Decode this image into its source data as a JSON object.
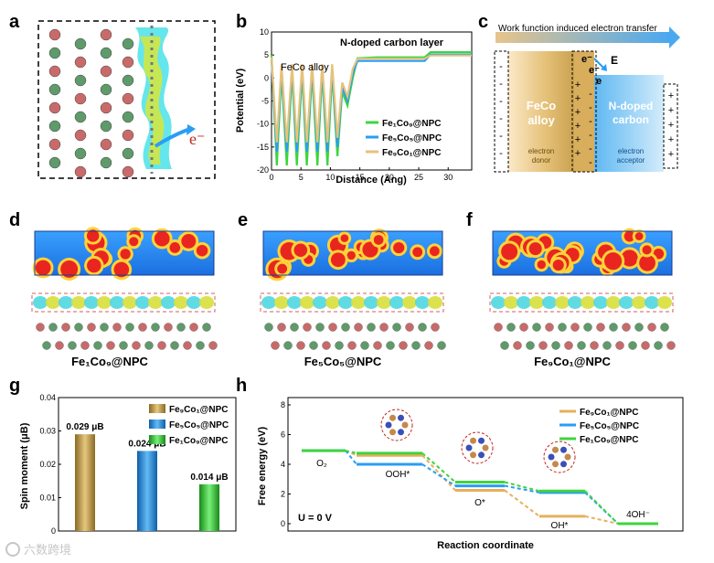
{
  "panels": {
    "a": "a",
    "b": "b",
    "c": "c",
    "d": "d",
    "e": "e",
    "f": "f",
    "g": "g",
    "h": "h"
  },
  "panel_a": {
    "electron_label": "e⁻"
  },
  "panel_c": {
    "arrow_text": "Work function induced electron transfer",
    "left_title_1": "FeCo",
    "left_title_2": "alloy",
    "left_sub_1": "electron",
    "left_sub_2": "donor",
    "right_title_1": "N-doped",
    "right_title_2": "carbon",
    "right_sub_1": "electron",
    "right_sub_2": "acceptor",
    "field_label": "E",
    "electron_1": "e⁻",
    "electron_2": "e⁻",
    "electron_3": "e",
    "minus": "-",
    "plus": "+"
  },
  "panel_titles": {
    "d": "Fe₁Co₉@NPC",
    "e": "Fe₅Co₅@NPC",
    "f": "Fe₉Co₁@NPC"
  },
  "chart_data": [
    {
      "id": "b",
      "type": "line",
      "xlabel": "Distance (Ang)",
      "ylabel": "Potential (eV)",
      "xlim": [
        0,
        34
      ],
      "ylim": [
        -20,
        10
      ],
      "xticks": [
        0,
        5,
        10,
        15,
        20,
        25,
        30
      ],
      "yticks": [
        -20,
        -15,
        -10,
        -5,
        0,
        5,
        10
      ],
      "annotations": [
        "FeCo alloy",
        "N-doped carbon layer"
      ],
      "series": [
        {
          "name": "Fe₁Co₉@NPC",
          "color": "#3fd43f",
          "x": [
            0,
            0.9,
            1.7,
            2.6,
            3.5,
            4.3,
            5.2,
            6.0,
            6.9,
            7.8,
            8.6,
            9.5,
            10.3,
            11.2,
            12.0,
            12.9,
            13.8,
            14.6,
            18,
            22,
            26,
            27,
            30,
            34
          ],
          "y": [
            5,
            -19,
            1,
            -19,
            1,
            -19,
            1,
            -19,
            1,
            -19,
            1,
            -19,
            1,
            -17,
            -3,
            -6,
            0,
            4.3,
            4.5,
            4.5,
            4.5,
            5.6,
            5.6,
            5.6
          ]
        },
        {
          "name": "Fe₅Co₅@NPC",
          "color": "#2a9df4",
          "x": [
            0,
            0.9,
            1.7,
            2.6,
            3.5,
            4.3,
            5.2,
            6.0,
            6.9,
            7.8,
            8.6,
            9.5,
            10.3,
            11.2,
            12.0,
            12.9,
            13.8,
            14.6,
            18,
            22,
            26,
            27,
            30,
            34
          ],
          "y": [
            4,
            -16,
            2,
            -16,
            2,
            -16,
            2,
            -16,
            2,
            -16,
            2,
            -16,
            2,
            -15,
            -2,
            -5,
            1,
            3.7,
            3.7,
            3.7,
            3.7,
            5.1,
            5.1,
            5.1
          ]
        },
        {
          "name": "Fe₉Co₁@NPC",
          "color": "#e6c27a",
          "x": [
            0,
            0.9,
            1.7,
            2.6,
            3.5,
            4.3,
            5.2,
            6.0,
            6.9,
            7.8,
            8.6,
            9.5,
            10.3,
            11.2,
            12.0,
            12.9,
            13.8,
            14.6,
            18,
            22,
            26,
            27,
            30,
            34
          ],
          "y": [
            4.5,
            -14,
            3,
            -14,
            3,
            -14,
            3,
            -14,
            3,
            -14,
            3,
            -14,
            3,
            -13,
            -1,
            -4,
            2,
            4.2,
            4.2,
            4.2,
            4.2,
            4.9,
            4.9,
            4.9
          ]
        }
      ]
    },
    {
      "id": "g",
      "type": "bar",
      "ylabel": "Spin moment (μB)",
      "ylim": [
        0,
        0.04
      ],
      "yticks": [
        0,
        0.01,
        0.02,
        0.03,
        0.04
      ],
      "categories": [
        "Fe₉Co₁@NPC",
        "Fe₅Co₅@NPC",
        "Fe₁Co₉@NPC"
      ],
      "values": [
        0.029,
        0.024,
        0.014
      ],
      "data_labels": [
        "0.029 μB",
        "0.024 μB",
        "0.014 μB"
      ],
      "colors": [
        "#c9a24a",
        "#2a9df4",
        "#3fd43f"
      ]
    },
    {
      "id": "h",
      "type": "line",
      "xlabel": "Reaction coordinate",
      "ylabel": "Free energy (eV)",
      "ylim": [
        0,
        8
      ],
      "yticks": [
        0,
        2,
        4,
        6,
        8
      ],
      "condition": "U = 0 V",
      "steps": [
        "O₂",
        "OOH*",
        "O*",
        "OH*",
        "4OH⁻"
      ],
      "series": [
        {
          "name": "Fe₉Co₁@NPC",
          "color": "#e6b05a",
          "values": [
            4.92,
            4.6,
            2.25,
            0.5,
            0
          ]
        },
        {
          "name": "Fe₅Co₅@NPC",
          "color": "#2a9df4",
          "values": [
            4.92,
            4.0,
            2.55,
            2.1,
            0
          ]
        },
        {
          "name": "Fe₁Co₉@NPC",
          "color": "#3fd43f",
          "values": [
            4.92,
            4.75,
            2.8,
            2.2,
            0
          ]
        }
      ]
    }
  ],
  "watermark": "六数跨境"
}
